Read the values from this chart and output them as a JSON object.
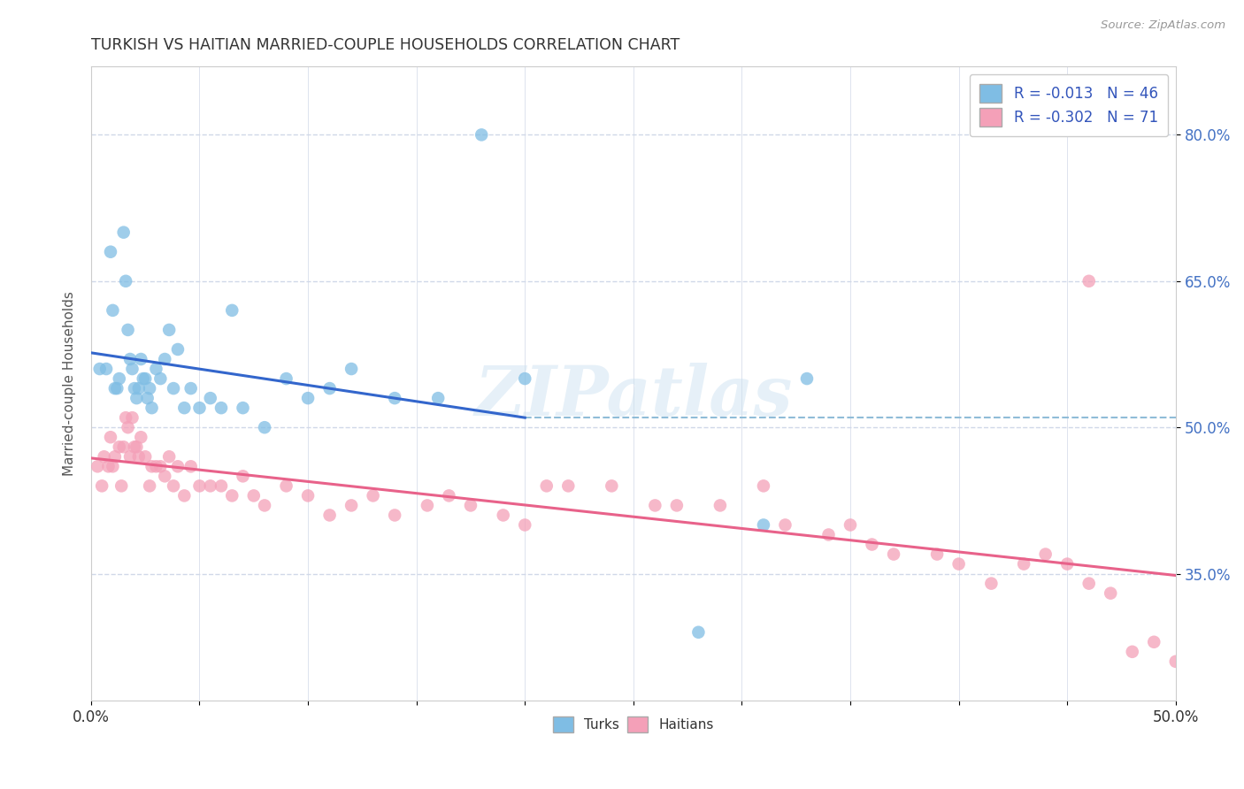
{
  "title": "TURKISH VS HAITIAN MARRIED-COUPLE HOUSEHOLDS CORRELATION CHART",
  "source_text": "Source: ZipAtlas.com",
  "ylabel": "Married-couple Households",
  "ytick_labels": [
    "35.0%",
    "50.0%",
    "65.0%",
    "80.0%"
  ],
  "ytick_values": [
    0.35,
    0.5,
    0.65,
    0.8
  ],
  "xlim": [
    0.0,
    0.5
  ],
  "ylim": [
    0.22,
    0.87
  ],
  "turks_R": -0.013,
  "turks_N": 46,
  "haitians_R": -0.302,
  "haitians_N": 71,
  "turks_color": "#7fbde4",
  "haitians_color": "#f4a0b8",
  "turks_line_color": "#3366cc",
  "haitians_line_color": "#e8628a",
  "dashed_color": "#90bcd8",
  "legend_label_turks": "Turks",
  "legend_label_haitians": "Haitians",
  "watermark": "ZIPatlas",
  "turks_x": [
    0.004,
    0.007,
    0.009,
    0.01,
    0.011,
    0.012,
    0.013,
    0.015,
    0.016,
    0.017,
    0.018,
    0.019,
    0.02,
    0.021,
    0.022,
    0.023,
    0.024,
    0.025,
    0.026,
    0.027,
    0.028,
    0.03,
    0.032,
    0.034,
    0.036,
    0.038,
    0.04,
    0.043,
    0.046,
    0.05,
    0.055,
    0.06,
    0.065,
    0.07,
    0.08,
    0.09,
    0.1,
    0.11,
    0.12,
    0.14,
    0.16,
    0.18,
    0.2,
    0.28,
    0.31,
    0.33
  ],
  "turks_y": [
    0.56,
    0.56,
    0.68,
    0.62,
    0.54,
    0.54,
    0.55,
    0.7,
    0.65,
    0.6,
    0.57,
    0.56,
    0.54,
    0.53,
    0.54,
    0.57,
    0.55,
    0.55,
    0.53,
    0.54,
    0.52,
    0.56,
    0.55,
    0.57,
    0.6,
    0.54,
    0.58,
    0.52,
    0.54,
    0.52,
    0.53,
    0.52,
    0.62,
    0.52,
    0.5,
    0.55,
    0.53,
    0.54,
    0.56,
    0.53,
    0.53,
    0.8,
    0.55,
    0.29,
    0.4,
    0.55
  ],
  "haitians_x": [
    0.003,
    0.005,
    0.006,
    0.008,
    0.009,
    0.01,
    0.011,
    0.013,
    0.014,
    0.015,
    0.016,
    0.017,
    0.018,
    0.019,
    0.02,
    0.021,
    0.022,
    0.023,
    0.025,
    0.027,
    0.028,
    0.03,
    0.032,
    0.034,
    0.036,
    0.038,
    0.04,
    0.043,
    0.046,
    0.05,
    0.055,
    0.06,
    0.065,
    0.07,
    0.075,
    0.08,
    0.09,
    0.1,
    0.11,
    0.12,
    0.13,
    0.14,
    0.155,
    0.165,
    0.175,
    0.19,
    0.2,
    0.21,
    0.22,
    0.24,
    0.26,
    0.27,
    0.29,
    0.31,
    0.32,
    0.34,
    0.35,
    0.36,
    0.37,
    0.39,
    0.4,
    0.415,
    0.43,
    0.44,
    0.45,
    0.46,
    0.47,
    0.48,
    0.49,
    0.5,
    0.46
  ],
  "haitians_y": [
    0.46,
    0.44,
    0.47,
    0.46,
    0.49,
    0.46,
    0.47,
    0.48,
    0.44,
    0.48,
    0.51,
    0.5,
    0.47,
    0.51,
    0.48,
    0.48,
    0.47,
    0.49,
    0.47,
    0.44,
    0.46,
    0.46,
    0.46,
    0.45,
    0.47,
    0.44,
    0.46,
    0.43,
    0.46,
    0.44,
    0.44,
    0.44,
    0.43,
    0.45,
    0.43,
    0.42,
    0.44,
    0.43,
    0.41,
    0.42,
    0.43,
    0.41,
    0.42,
    0.43,
    0.42,
    0.41,
    0.4,
    0.44,
    0.44,
    0.44,
    0.42,
    0.42,
    0.42,
    0.44,
    0.4,
    0.39,
    0.4,
    0.38,
    0.37,
    0.37,
    0.36,
    0.34,
    0.36,
    0.37,
    0.36,
    0.34,
    0.33,
    0.27,
    0.28,
    0.26,
    0.65
  ]
}
